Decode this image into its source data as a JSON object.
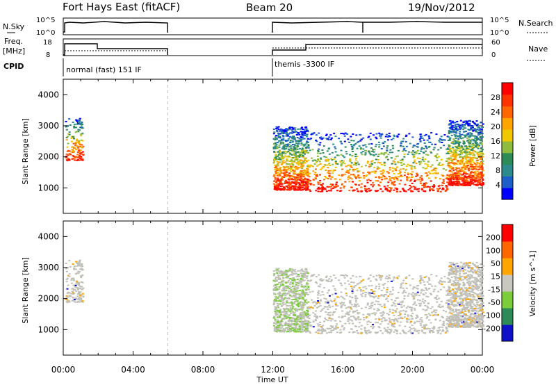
{
  "header": {
    "station": "Fort Hays East (fitACF)",
    "beam": "Beam 20",
    "date": "19/Nov/2012"
  },
  "top_panels": {
    "nsky_label": "N.Sky",
    "nsky_ticks": [
      "10^5",
      "10^0"
    ],
    "nsearch_label": "N.Search",
    "nsearch_ticks": [
      "10^5",
      "10^0"
    ],
    "freq_label": "Freq.",
    "freq_unit": "[MHz]",
    "freq_ticks": [
      "18",
      "8"
    ],
    "nave_label": "Nave",
    "nave_ticks": [
      "60",
      "0"
    ],
    "cpid_label": "CPID",
    "cpid_segments": [
      {
        "label": "normal (fast) 151 IF",
        "start_hour": 0,
        "end_hour": 12
      },
      {
        "label": "themis -3300 IF",
        "start_hour": 12,
        "end_hour": 24
      }
    ]
  },
  "x_axis": {
    "label": "Time UT",
    "ticks": [
      "00:00",
      "04:00",
      "08:00",
      "12:00",
      "16:00",
      "20:00",
      "00:00"
    ]
  },
  "chart_data": [
    {
      "type": "heatmap",
      "panel": "power",
      "ylabel": "Slant Range [km]",
      "yticks": [
        1000,
        2000,
        3000,
        4000
      ],
      "ylim": [
        180,
        4500
      ],
      "xlim_hours": [
        0,
        24
      ],
      "colorbar_label": "Power [dB]",
      "colorbar_ticks": [
        "28",
        "24",
        "20",
        "16",
        "12",
        "8",
        "4"
      ],
      "colors": [
        "#0000ff",
        "#1e5ec8",
        "#2e8b8b",
        "#2e8b57",
        "#8fbc3f",
        "#f0c800",
        "#ffa500",
        "#ff6600",
        "#ff3300",
        "#ff0000"
      ],
      "scatter_regions": [
        {
          "t0": 0.1,
          "t1": 1.1,
          "r0": 1900,
          "r1": 3300
        },
        {
          "t0": 12.0,
          "t1": 14.0,
          "r0": 950,
          "r1": 3000
        },
        {
          "t0": 14.0,
          "t1": 22.0,
          "r0": 900,
          "r1": 2800
        },
        {
          "t0": 22.0,
          "t1": 24.0,
          "r0": 1100,
          "r1": 3200
        }
      ]
    },
    {
      "type": "heatmap",
      "panel": "velocity",
      "ylabel": "Slant Range [km]",
      "yticks": [
        1000,
        2000,
        3000,
        4000
      ],
      "ylim": [
        180,
        4500
      ],
      "xlim_hours": [
        0,
        24
      ],
      "colorbar_label": "Velocity [m s^-1]",
      "colorbar_ticks": [
        "200",
        "100",
        "50",
        "15",
        "-15",
        "-50",
        "-100",
        "-200"
      ],
      "colors": [
        "#1010c8",
        "#2e8b57",
        "#7ccd3c",
        "#c8c8c0",
        "#ffa500",
        "#ff6600",
        "#ff0000"
      ],
      "ground_scatter_color": "#c0c0b8"
    }
  ]
}
